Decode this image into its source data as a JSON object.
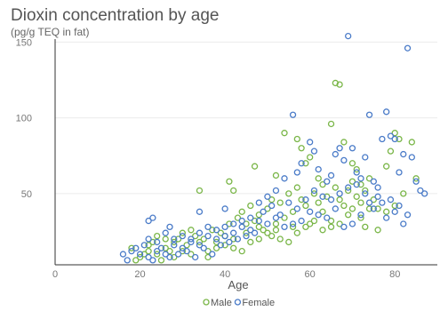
{
  "chart_data": {
    "type": "scatter",
    "title": "Dioxin concentration by age",
    "subtitle": "(pg/g TEQ in fat)",
    "xlabel": "Age",
    "ylabel": "",
    "xlim": [
      0,
      90
    ],
    "ylim": [
      3,
      152
    ],
    "x_ticks": [
      "0",
      "20",
      "40",
      "60",
      "80"
    ],
    "y_ticks": [
      "50",
      "100",
      "150"
    ],
    "grid": true,
    "legend_position": "bottom",
    "series": [
      {
        "name": "Male",
        "color": "#7ab648",
        "points": [
          [
            34,
            52
          ],
          [
            41,
            58
          ],
          [
            42,
            52
          ],
          [
            47,
            68
          ],
          [
            52,
            62
          ],
          [
            54,
            90
          ],
          [
            57,
            86
          ],
          [
            58,
            80
          ],
          [
            59,
            70
          ],
          [
            60,
            74
          ],
          [
            62,
            60
          ],
          [
            63,
            56
          ],
          [
            65,
            96
          ],
          [
            66,
            123
          ],
          [
            67,
            122
          ],
          [
            68,
            84
          ],
          [
            70,
            70
          ],
          [
            71,
            66
          ],
          [
            72,
            56
          ],
          [
            73,
            52
          ],
          [
            74,
            60
          ],
          [
            75,
            46
          ],
          [
            76,
            40
          ],
          [
            78,
            68
          ],
          [
            79,
            78
          ],
          [
            80,
            90
          ],
          [
            81,
            86
          ],
          [
            82,
            50
          ],
          [
            84,
            84
          ],
          [
            85,
            60
          ],
          [
            76,
            26
          ],
          [
            78,
            38
          ],
          [
            80,
            42
          ],
          [
            70,
            40
          ],
          [
            72,
            34
          ],
          [
            65,
            32
          ],
          [
            60,
            30
          ],
          [
            56,
            28
          ],
          [
            52,
            26
          ],
          [
            48,
            28
          ],
          [
            45,
            24
          ],
          [
            42,
            20
          ],
          [
            40,
            16
          ],
          [
            38,
            14
          ],
          [
            36,
            12
          ],
          [
            34,
            18
          ],
          [
            32,
            10
          ],
          [
            30,
            12
          ],
          [
            28,
            8
          ],
          [
            26,
            14
          ],
          [
            24,
            10
          ],
          [
            22,
            12
          ],
          [
            20,
            8
          ],
          [
            18,
            14
          ],
          [
            19,
            6
          ],
          [
            21,
            10
          ],
          [
            23,
            18
          ],
          [
            25,
            6
          ],
          [
            27,
            12
          ],
          [
            29,
            20
          ],
          [
            31,
            16
          ],
          [
            33,
            22
          ],
          [
            35,
            20
          ],
          [
            37,
            26
          ],
          [
            39,
            24
          ],
          [
            41,
            30
          ],
          [
            43,
            34
          ],
          [
            44,
            38
          ],
          [
            46,
            42
          ],
          [
            48,
            36
          ],
          [
            50,
            40
          ],
          [
            51,
            46
          ],
          [
            53,
            44
          ],
          [
            55,
            50
          ],
          [
            56,
            38
          ],
          [
            57,
            54
          ],
          [
            58,
            46
          ],
          [
            59,
            42
          ],
          [
            61,
            50
          ],
          [
            62,
            44
          ],
          [
            63,
            38
          ],
          [
            64,
            48
          ],
          [
            66,
            54
          ],
          [
            67,
            46
          ],
          [
            68,
            42
          ],
          [
            69,
            52
          ],
          [
            70,
            58
          ],
          [
            71,
            48
          ],
          [
            72,
            44
          ],
          [
            74,
            40
          ],
          [
            36,
            8
          ],
          [
            38,
            18
          ],
          [
            40,
            22
          ],
          [
            42,
            14
          ],
          [
            44,
            12
          ],
          [
            46,
            18
          ],
          [
            48,
            20
          ],
          [
            50,
            24
          ],
          [
            52,
            30
          ],
          [
            54,
            34
          ],
          [
            30,
            24
          ],
          [
            32,
            26
          ],
          [
            28,
            18
          ],
          [
            26,
            20
          ],
          [
            24,
            22
          ],
          [
            22,
            16
          ],
          [
            45,
            30
          ],
          [
            47,
            32
          ],
          [
            49,
            26
          ],
          [
            51,
            22
          ],
          [
            53,
            20
          ],
          [
            55,
            18
          ],
          [
            57,
            24
          ],
          [
            59,
            28
          ],
          [
            61,
            32
          ],
          [
            63,
            26
          ],
          [
            65,
            28
          ],
          [
            67,
            30
          ],
          [
            69,
            36
          ],
          [
            73,
            28
          ]
        ]
      },
      {
        "name": "Female",
        "color": "#4a7bc8",
        "points": [
          [
            22,
            32
          ],
          [
            23,
            34
          ],
          [
            27,
            28
          ],
          [
            34,
            38
          ],
          [
            40,
            40
          ],
          [
            50,
            48
          ],
          [
            52,
            52
          ],
          [
            54,
            60
          ],
          [
            56,
            102
          ],
          [
            57,
            64
          ],
          [
            58,
            70
          ],
          [
            60,
            84
          ],
          [
            61,
            78
          ],
          [
            62,
            66
          ],
          [
            64,
            58
          ],
          [
            65,
            62
          ],
          [
            66,
            76
          ],
          [
            67,
            80
          ],
          [
            68,
            72
          ],
          [
            69,
            154
          ],
          [
            70,
            80
          ],
          [
            71,
            64
          ],
          [
            72,
            60
          ],
          [
            73,
            74
          ],
          [
            74,
            102
          ],
          [
            75,
            58
          ],
          [
            76,
            54
          ],
          [
            77,
            86
          ],
          [
            78,
            104
          ],
          [
            79,
            88
          ],
          [
            80,
            86
          ],
          [
            81,
            64
          ],
          [
            82,
            76
          ],
          [
            83,
            146
          ],
          [
            84,
            74
          ],
          [
            85,
            58
          ],
          [
            86,
            52
          ],
          [
            87,
            50
          ],
          [
            74,
            44
          ],
          [
            76,
            48
          ],
          [
            78,
            34
          ],
          [
            80,
            38
          ],
          [
            82,
            30
          ],
          [
            72,
            36
          ],
          [
            70,
            30
          ],
          [
            68,
            28
          ],
          [
            66,
            40
          ],
          [
            64,
            34
          ],
          [
            62,
            36
          ],
          [
            60,
            38
          ],
          [
            58,
            32
          ],
          [
            56,
            30
          ],
          [
            54,
            28
          ],
          [
            52,
            34
          ],
          [
            50,
            30
          ],
          [
            48,
            32
          ],
          [
            46,
            26
          ],
          [
            44,
            28
          ],
          [
            42,
            24
          ],
          [
            40,
            22
          ],
          [
            38,
            20
          ],
          [
            36,
            22
          ],
          [
            34,
            16
          ],
          [
            32,
            18
          ],
          [
            30,
            14
          ],
          [
            28,
            16
          ],
          [
            26,
            10
          ],
          [
            24,
            12
          ],
          [
            22,
            8
          ],
          [
            20,
            10
          ],
          [
            18,
            12
          ],
          [
            17,
            6
          ],
          [
            16,
            10
          ],
          [
            19,
            14
          ],
          [
            21,
            16
          ],
          [
            23,
            6
          ],
          [
            25,
            14
          ],
          [
            27,
            8
          ],
          [
            29,
            10
          ],
          [
            31,
            12
          ],
          [
            33,
            8
          ],
          [
            35,
            14
          ],
          [
            37,
            10
          ],
          [
            39,
            16
          ],
          [
            41,
            18
          ],
          [
            43,
            20
          ],
          [
            45,
            22
          ],
          [
            47,
            24
          ],
          [
            49,
            38
          ],
          [
            51,
            42
          ],
          [
            53,
            36
          ],
          [
            55,
            44
          ],
          [
            57,
            40
          ],
          [
            59,
            46
          ],
          [
            61,
            52
          ],
          [
            63,
            48
          ],
          [
            65,
            46
          ],
          [
            67,
            50
          ],
          [
            69,
            54
          ],
          [
            71,
            56
          ],
          [
            73,
            50
          ],
          [
            75,
            40
          ],
          [
            77,
            44
          ],
          [
            79,
            46
          ],
          [
            81,
            42
          ],
          [
            83,
            36
          ],
          [
            48,
            44
          ],
          [
            46,
            34
          ],
          [
            44,
            32
          ],
          [
            42,
            30
          ],
          [
            40,
            28
          ],
          [
            38,
            26
          ],
          [
            36,
            28
          ],
          [
            34,
            24
          ],
          [
            32,
            20
          ],
          [
            30,
            22
          ],
          [
            28,
            20
          ],
          [
            26,
            24
          ],
          [
            24,
            18
          ],
          [
            22,
            20
          ]
        ]
      }
    ]
  }
}
